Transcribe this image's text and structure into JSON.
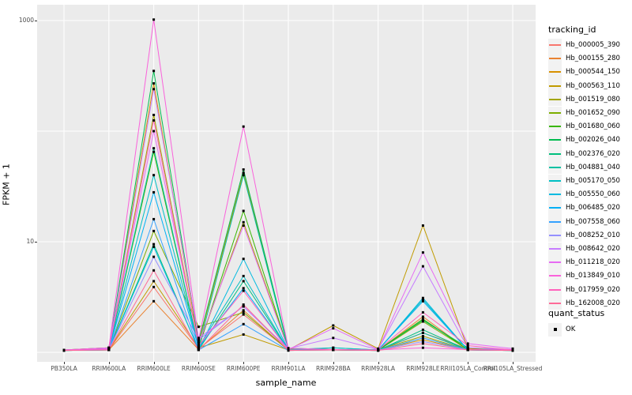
{
  "figure": {
    "panel_bg": "#EBEBEB",
    "grid_color": "#FFFFFF",
    "tick_color": "#333333",
    "tick_label_color": "#4D4D4D",
    "point_color": "#000000"
  },
  "axes": {
    "x_title": "sample_name",
    "y_title": "FPKM + 1",
    "y_tick_labels": [
      "1000",
      "10"
    ]
  },
  "legend": {
    "color_title": "tracking_id",
    "shape_title": "quant_status",
    "shape_items": [
      "OK"
    ]
  },
  "chart_data": {
    "type": "line",
    "title": "",
    "xlabel": "sample_name",
    "ylabel": "FPKM + 1",
    "y_scale": "log10",
    "y_tick_values": [
      1000,
      10
    ],
    "y_gridlines": [
      1,
      10,
      100,
      1000
    ],
    "grid": true,
    "legend_position": "right",
    "point_marker": "small-black-square",
    "categories": [
      "PB350LA",
      "RRIM600LA",
      "RRIM600LE",
      "RRIM600SE",
      "RRIM600PE",
      "RRIM901LA",
      "RRIM928BA",
      "RRIM928LA",
      "RRIM928LE",
      "RRII105LA_Control",
      "RRII105LA_Stressed"
    ],
    "series": [
      {
        "name": "Hb_000005_390",
        "color": "#F8766D",
        "values": [
          1.05,
          1.05,
          3.9,
          1.08,
          2.2,
          1.05,
          1.05,
          1.04,
          1.5,
          1.08,
          1.04
        ]
      },
      {
        "name": "Hb_000155_280",
        "color": "#EA8331",
        "values": [
          1.04,
          1.05,
          2.9,
          1.06,
          2.4,
          1.04,
          1.05,
          1.04,
          2.1,
          1.05,
          1.04
        ]
      },
      {
        "name": "Hb_000544_150",
        "color": "#D89000",
        "values": [
          1.05,
          1.1,
          270,
          1.2,
          42,
          1.08,
          1.06,
          1.05,
          1.3,
          1.05,
          1.05
        ]
      },
      {
        "name": "Hb_000563_110",
        "color": "#C09B00",
        "values": [
          1.04,
          1.06,
          4.4,
          1.1,
          1.45,
          1.05,
          1.75,
          1.08,
          14,
          1.08,
          1.05
        ]
      },
      {
        "name": "Hb_001519_080",
        "color": "#A3A500",
        "values": [
          1.05,
          1.06,
          140,
          1.15,
          15,
          1.07,
          1.05,
          1.05,
          1.4,
          1.05,
          1.04
        ]
      },
      {
        "name": "Hb_001652_090",
        "color": "#7CAE00",
        "values": [
          1.04,
          1.05,
          12.5,
          1.7,
          2.3,
          1.05,
          1.05,
          1.04,
          1.9,
          1.06,
          1.04
        ]
      },
      {
        "name": "Hb_001680_060",
        "color": "#39B600",
        "values": [
          1.05,
          1.06,
          65,
          1.1,
          19,
          1.06,
          1.05,
          1.05,
          2.0,
          1.06,
          1.05
        ]
      },
      {
        "name": "Hb_002026_040",
        "color": "#00BB4E",
        "values": [
          1.05,
          1.1,
          350,
          1.25,
          45,
          1.09,
          1.06,
          1.05,
          1.95,
          1.1,
          1.05
        ]
      },
      {
        "name": "Hb_002376_020",
        "color": "#00BF7D",
        "values": [
          1.04,
          1.05,
          9.5,
          1.05,
          4.4,
          1.05,
          1.05,
          1.04,
          1.6,
          1.05,
          1.04
        ]
      },
      {
        "name": "Hb_004881_040",
        "color": "#00C1A3",
        "values": [
          1.05,
          1.07,
          70,
          1.1,
          40,
          1.06,
          1.1,
          1.05,
          1.5,
          1.05,
          1.05
        ]
      },
      {
        "name": "Hb_005170_050",
        "color": "#00BFC4",
        "values": [
          1.05,
          1.06,
          40,
          1.12,
          4.9,
          1.05,
          1.1,
          1.05,
          3.0,
          1.05,
          1.04
        ]
      },
      {
        "name": "Hb_005550_060",
        "color": "#00BAE0",
        "values": [
          1.04,
          1.05,
          9.0,
          1.06,
          7.0,
          1.05,
          1.06,
          1.04,
          3.1,
          1.05,
          1.04
        ]
      },
      {
        "name": "Hb_006485_020",
        "color": "#00B0F6",
        "values": [
          1.05,
          1.06,
          28,
          1.1,
          3.8,
          1.05,
          1.05,
          1.05,
          2.9,
          1.05,
          1.05
        ]
      },
      {
        "name": "Hb_007558_060",
        "color": "#35A2FF",
        "values": [
          1.04,
          1.05,
          16,
          1.05,
          1.8,
          1.04,
          1.05,
          1.04,
          1.35,
          1.05,
          1.04
        ]
      },
      {
        "name": "Hb_008252_010",
        "color": "#9590FF",
        "values": [
          1.05,
          1.06,
          7.3,
          1.3,
          2.6,
          1.05,
          1.06,
          1.05,
          1.25,
          1.06,
          1.05
        ]
      },
      {
        "name": "Hb_008642_020",
        "color": "#C77CFF",
        "values": [
          1.05,
          1.08,
          240,
          1.35,
          2.6,
          1.08,
          1.35,
          1.06,
          6.0,
          1.1,
          1.06
        ]
      },
      {
        "name": "Hb_011218_020",
        "color": "#E76BF3",
        "values": [
          1.05,
          1.07,
          100,
          1.2,
          14,
          1.06,
          1.65,
          1.06,
          8.0,
          1.2,
          1.08
        ]
      },
      {
        "name": "Hb_013849_010",
        "color": "#FA62DB",
        "values": [
          1.05,
          1.1,
          1020,
          1.3,
          110,
          1.09,
          1.06,
          1.05,
          1.1,
          1.06,
          1.05
        ]
      },
      {
        "name": "Hb_017959_020",
        "color": "#FF62BC",
        "values": [
          1.04,
          1.06,
          125,
          1.15,
          3.6,
          1.05,
          1.05,
          1.05,
          2.3,
          1.15,
          1.05
        ]
      },
      {
        "name": "Hb_162008_020",
        "color": "#FF6A98",
        "values": [
          1.04,
          1.05,
          5.5,
          1.05,
          2.7,
          1.04,
          1.05,
          1.04,
          1.2,
          1.05,
          1.04
        ]
      }
    ]
  }
}
